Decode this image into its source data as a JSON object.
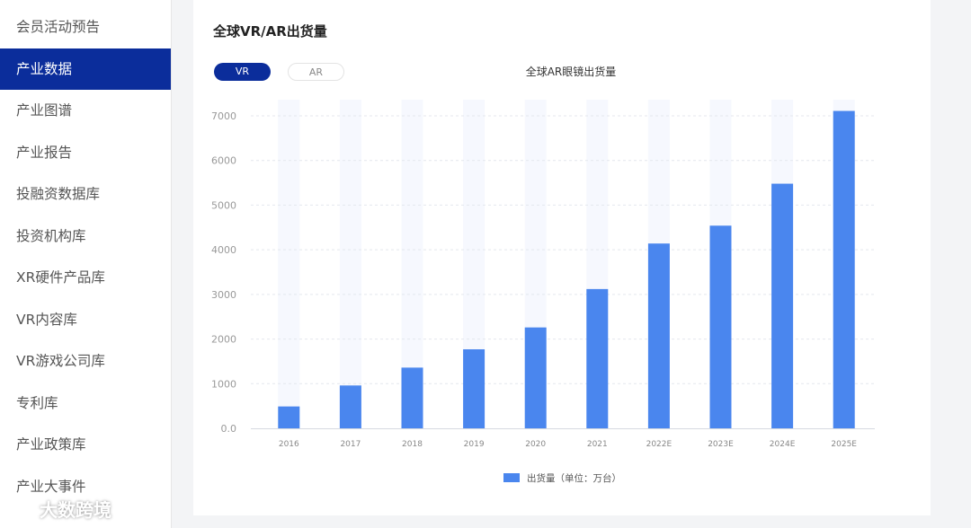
{
  "sidebar": {
    "items": [
      {
        "label": "会员活动预告",
        "active": false
      },
      {
        "label": "产业数据",
        "active": true
      },
      {
        "label": "产业图谱",
        "active": false
      },
      {
        "label": "产业报告",
        "active": false
      },
      {
        "label": "投融资数据库",
        "active": false
      },
      {
        "label": "投资机构库",
        "active": false
      },
      {
        "label": "XR硬件产品库",
        "active": false
      },
      {
        "label": "VR内容库",
        "active": false
      },
      {
        "label": "VR游戏公司库",
        "active": false
      },
      {
        "label": "专利库",
        "active": false
      },
      {
        "label": "产业政策库",
        "active": false
      },
      {
        "label": "产业大事件",
        "active": false
      }
    ]
  },
  "main": {
    "title": "全球VR/AR出货量",
    "tabs": [
      {
        "label": "VR",
        "active": true
      },
      {
        "label": "AR",
        "active": false
      }
    ]
  },
  "watermark": {
    "text": "大数跨境"
  },
  "colors": {
    "accent": "#0b2d9b",
    "bar": "#4a86ee",
    "bar_background": "#f6f8fe"
  },
  "chart_data": {
    "type": "bar",
    "title": "全球AR眼镜出货量",
    "categories": [
      "2016",
      "2017",
      "2018",
      "2019",
      "2020",
      "2021",
      "2022E",
      "2023E",
      "2024E",
      "2025E"
    ],
    "series": [
      {
        "name": "出货量（单位：万台）",
        "values": [
          490,
          960,
          1360,
          1770,
          2260,
          3120,
          4140,
          4540,
          5480,
          7110
        ]
      }
    ],
    "yticks": [
      "0.0",
      "1000",
      "2000",
      "3000",
      "4000",
      "5000",
      "6000",
      "7000"
    ],
    "ylim": [
      0,
      7000
    ],
    "grid": true,
    "legend": "bottom-center"
  }
}
